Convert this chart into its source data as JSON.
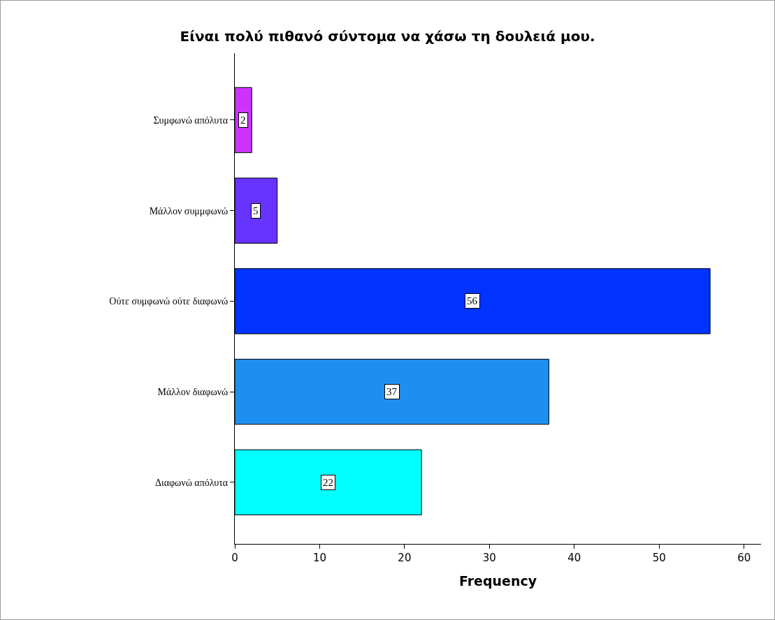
{
  "chart_data": {
    "type": "bar",
    "orientation": "horizontal",
    "title": "Είναι πολύ πιθανό σύντομα να χάσω τη δουλειά μου.",
    "xlabel": "Frequency",
    "categories": [
      "Συμφωνώ απόλυτα",
      "Μάλλον συμμφωνώ",
      "Ούτε συμφωνώ ούτε διαφωνώ",
      "Μάλλον διαφωνώ",
      "Διαφωνώ απόλυτα"
    ],
    "values": [
      2,
      5,
      56,
      37,
      22
    ],
    "colors": [
      "#cc33ff",
      "#6633ff",
      "#0033ff",
      "#1e8ff0",
      "#00ffff"
    ],
    "xlim": [
      0,
      62
    ],
    "xticks": [
      0,
      10,
      20,
      30,
      40,
      50,
      60
    ],
    "grid": false,
    "data_labels": true
  }
}
